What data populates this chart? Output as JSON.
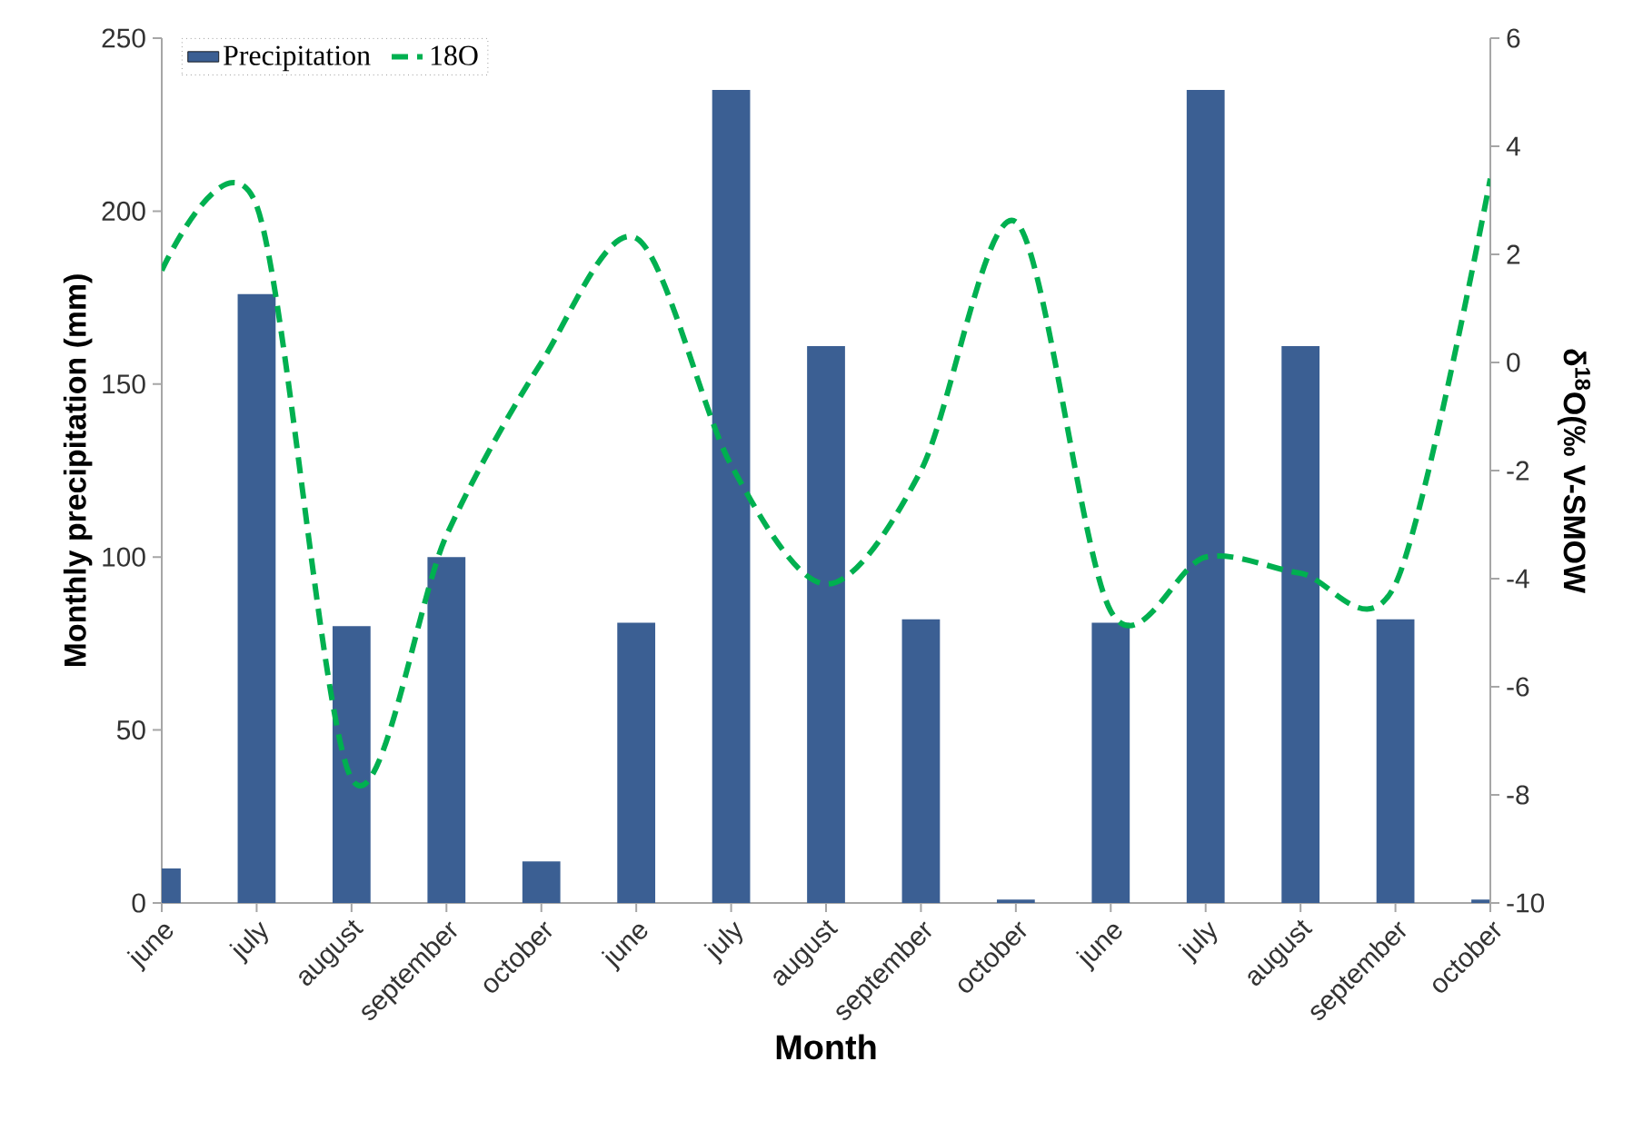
{
  "chart_data": {
    "type": "bar",
    "xlabel": "Month",
    "ylabel": "Monthly precipitation (mm)",
    "y2label": "δ$^{18}$O(‰ V-SMOW",
    "legend": "top left",
    "categories": [
      "june",
      "july",
      "august",
      "september",
      "october",
      "june",
      "july",
      "august",
      "september",
      "october",
      "june",
      "july",
      "august",
      "september",
      "october"
    ],
    "series": [
      {
        "name": "Precipitation",
        "color": "#3b5f93",
        "values": [
          10,
          176,
          80,
          100,
          12,
          81,
          235,
          161,
          82,
          1,
          81,
          235,
          161,
          82,
          1
        ]
      },
      {
        "name": "18O",
        "type": "line",
        "axis": "y2",
        "color": "#00b050",
        "line_style": "dashed",
        "values": [
          1.7,
          2.9,
          -7.7,
          -3.2,
          0.0,
          2.3,
          -1.9,
          -4.1,
          -2.0,
          2.6,
          -4.6,
          -3.6,
          -3.9,
          -4.1,
          3.4
        ]
      }
    ],
    "ylim": [
      0,
      250
    ],
    "yticks": [
      0,
      50,
      100,
      150,
      200,
      250
    ],
    "y2lim": [
      -10,
      6
    ],
    "y2ticks": [
      -10,
      -8,
      -6,
      -4,
      -2,
      0,
      2,
      4,
      6
    ]
  }
}
